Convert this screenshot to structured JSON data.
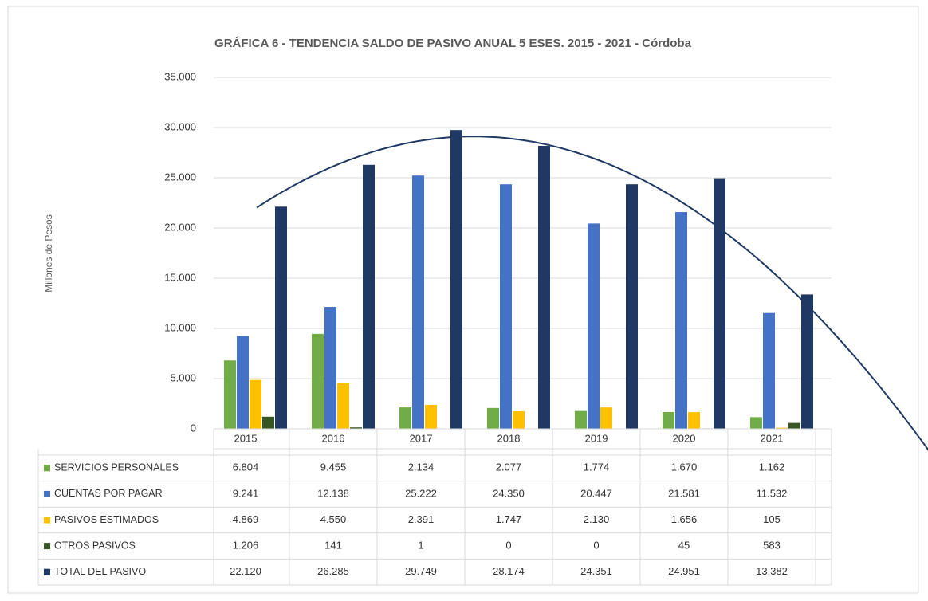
{
  "chart_data": {
    "type": "bar",
    "title": "GRÁFICA 6 - TENDENCIA SALDO DE PASIVO ANUAL 5 ESES. 2015 - 2021 - Córdoba",
    "y_label": "Millones de Pesos",
    "categories": [
      "2015",
      "2016",
      "2017",
      "2018",
      "2019",
      "2020",
      "2021"
    ],
    "series": [
      {
        "name": "SERVICIOS PERSONALES",
        "color": "#70ad47",
        "values": [
          6804,
          9455,
          2134,
          2077,
          1774,
          1670,
          1162
        ],
        "value_labels": [
          "6.804",
          "9.455",
          "2.134",
          "2.077",
          "1.774",
          "1.670",
          "1.162"
        ]
      },
      {
        "name": "CUENTAS POR PAGAR",
        "color": "#4472c4",
        "values": [
          9241,
          12138,
          25222,
          24350,
          20447,
          21581,
          11532
        ],
        "value_labels": [
          "9.241",
          "12.138",
          "25.222",
          "24.350",
          "20.447",
          "21.581",
          "11.532"
        ]
      },
      {
        "name": "PASIVOS ESTIMADOS",
        "color": "#ffc000",
        "values": [
          4869,
          4550,
          2391,
          1747,
          2130,
          1656,
          105
        ],
        "value_labels": [
          "4.869",
          "4.550",
          "2.391",
          "1.747",
          "2.130",
          "1.656",
          "105"
        ]
      },
      {
        "name": "OTROS PASIVOS",
        "color": "#375623",
        "values": [
          1206,
          141,
          1,
          0,
          0,
          45,
          583
        ],
        "value_labels": [
          "1.206",
          "141",
          "1",
          "0",
          "0",
          "45",
          "583"
        ]
      },
      {
        "name": "TOTAL DEL PASIVO",
        "color": "#203864",
        "values": [
          22120,
          26285,
          29749,
          28174,
          24351,
          24951,
          13382
        ],
        "value_labels": [
          "22.120",
          "26.285",
          "29.749",
          "28.174",
          "24.351",
          "24.951",
          "13.382"
        ]
      }
    ],
    "ylim": [
      0,
      35000
    ],
    "yticks": [
      0,
      {
        "value": 5000,
        "label": "5.000"
      },
      {
        "value": 10000,
        "label": "10.000"
      },
      {
        "value": 15000,
        "label": "15.000"
      },
      {
        "value": 20000,
        "label": "20.000"
      },
      {
        "value": 25000,
        "label": "25.000"
      },
      {
        "value": 30000,
        "label": "30.000"
      },
      {
        "value": 35000,
        "label": "35.000"
      }
    ],
    "grid": true,
    "trendline_color": "#203864"
  }
}
